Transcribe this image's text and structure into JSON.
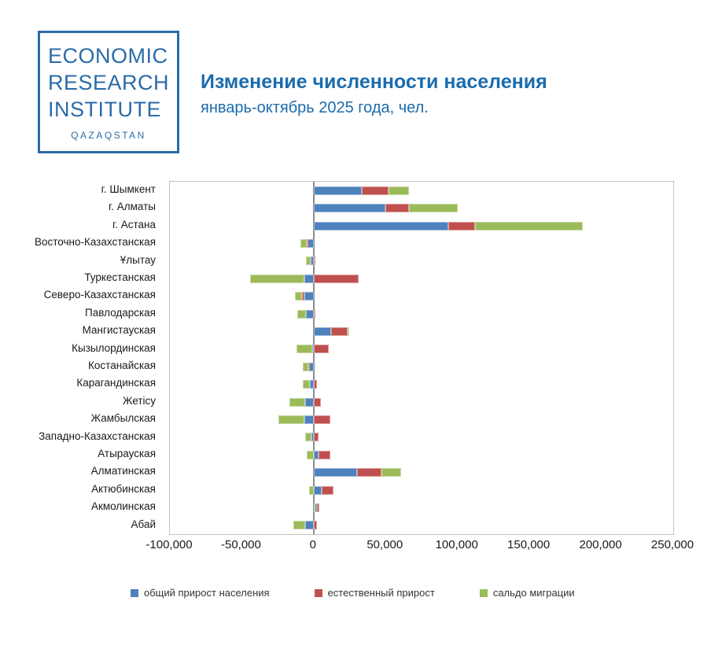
{
  "header": {
    "logo": {
      "line1": "ECONOMIC",
      "line2": "RESEARCH",
      "line3": "INSTITUTE",
      "sub": "QAZAQSTAN"
    },
    "title": "Изменение численности населения",
    "subtitle": "январь-октябрь 2025 года, чел."
  },
  "colors": {
    "brand_blue": "#2b6ba8",
    "title_blue": "#1a6cae",
    "series_total": "#4f81bd",
    "series_natural": "#c0504d",
    "series_migration": "#9bbb59",
    "zero_line": "#8c8c8c",
    "plot_border": "#c3c3c3",
    "axis_text": "#1a1a1a"
  },
  "chart_data": {
    "type": "bar",
    "orientation": "horizontal",
    "stacked": true,
    "grid": false,
    "legend_position": "bottom",
    "xlim": [
      -100000,
      250000
    ],
    "xticks": [
      -100000,
      -50000,
      0,
      50000,
      100000,
      150000,
      200000,
      250000
    ],
    "xtick_labels": [
      "-100,000",
      "-50,000",
      "0",
      "50,000",
      "100,000",
      "150,000",
      "200,000",
      "250,000"
    ],
    "categories": [
      "г. Шымкент",
      "г. Алматы",
      "г. Астана",
      "Восточно-Казахстанская",
      "Ұлытау",
      "Туркестанская",
      "Северо-Казахстанская",
      "Павлодарская",
      "Мангистауская",
      "Кызылординская",
      "Костанайская",
      "Карагандинская",
      "Жетісу",
      "Жамбылская",
      "Западно-Казахстанская",
      "Атырауская",
      "Алматинская",
      "Актюбинская",
      "Акмолинская",
      "Абай"
    ],
    "series": [
      {
        "name": "общий прирост населения",
        "color": "#4f81bd",
        "values": [
          33200,
          50000,
          93600,
          -4600,
          -2100,
          -6500,
          -6600,
          -5300,
          12200,
          -900,
          -3700,
          -2600,
          -6000,
          -6400,
          -1300,
          3300,
          30300,
          5300,
          2000,
          -6000
        ]
      },
      {
        "name": "естественный прирост",
        "color": "#c0504d",
        "values": [
          18600,
          16500,
          18800,
          -400,
          1200,
          31200,
          -1300,
          800,
          11600,
          10400,
          -100,
          2500,
          4900,
          11800,
          3600,
          8000,
          16900,
          8500,
          2100,
          2400
        ]
      },
      {
        "name": "сальдо миграции",
        "color": "#9bbb59",
        "values": [
          14600,
          33500,
          74800,
          -4200,
          -3300,
          -37700,
          -5300,
          -6100,
          600,
          -11300,
          -3600,
          -5100,
          -10900,
          -18200,
          -4900,
          -4700,
          13400,
          -3200,
          -100,
          -8400
        ]
      }
    ]
  }
}
